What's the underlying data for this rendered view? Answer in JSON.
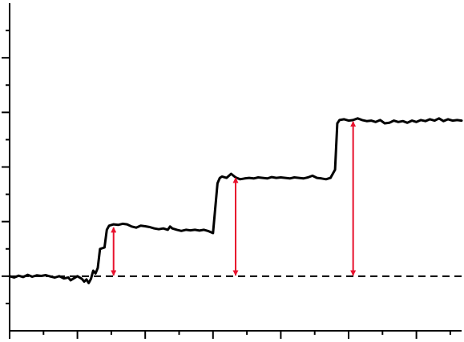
{
  "chart_data": {
    "type": "line",
    "title": "",
    "xlabel": "",
    "ylabel": "",
    "grid": false,
    "legend": "none",
    "xlim": [
      0,
      100
    ],
    "ylim": [
      -2,
      10
    ],
    "x_major_ticks": [
      0,
      15,
      30,
      45,
      60,
      75,
      90
    ],
    "x_minor_ticks": [
      7.5,
      22.5,
      37.5,
      52.5,
      67.5,
      82.5,
      97.5
    ],
    "y_major_ticks": [
      0,
      2,
      4,
      6,
      8
    ],
    "y_minor_ticks": [
      -1,
      1,
      3,
      5,
      7,
      9
    ],
    "baseline": {
      "y": 0,
      "style": "dashed",
      "color": "#000000"
    },
    "series": [
      {
        "color": "#000000",
        "points": [
          [
            0,
            0.0
          ],
          [
            1,
            -0.05
          ],
          [
            2,
            0.02
          ],
          [
            3,
            -0.03
          ],
          [
            4,
            0.05
          ],
          [
            5,
            -0.02
          ],
          [
            6,
            0.03
          ],
          [
            7,
            0.01
          ],
          [
            8,
            0.04
          ],
          [
            9,
            -0.01
          ],
          [
            10,
            -0.05
          ],
          [
            11,
            0.0
          ],
          [
            12,
            -0.08
          ],
          [
            13,
            -0.05
          ],
          [
            13.5,
            -0.15
          ],
          [
            14,
            -0.1
          ],
          [
            15,
            0.0
          ],
          [
            16,
            -0.1
          ],
          [
            16.5,
            -0.2
          ],
          [
            17,
            -0.12
          ],
          [
            17.5,
            -0.25
          ],
          [
            18,
            -0.1
          ],
          [
            18.5,
            0.2
          ],
          [
            19,
            0.1
          ],
          [
            19.5,
            0.3
          ],
          [
            20,
            1.0
          ],
          [
            21,
            1.05
          ],
          [
            21.5,
            1.7
          ],
          [
            22,
            1.85
          ],
          [
            23,
            1.9
          ],
          [
            24,
            1.88
          ],
          [
            25,
            1.92
          ],
          [
            26,
            1.9
          ],
          [
            27,
            1.82
          ],
          [
            28,
            1.78
          ],
          [
            29,
            1.85
          ],
          [
            30,
            1.83
          ],
          [
            31,
            1.8
          ],
          [
            32,
            1.75
          ],
          [
            33,
            1.72
          ],
          [
            34,
            1.75
          ],
          [
            35,
            1.7
          ],
          [
            35.5,
            1.82
          ],
          [
            36,
            1.75
          ],
          [
            37,
            1.7
          ],
          [
            38,
            1.66
          ],
          [
            39,
            1.7
          ],
          [
            40,
            1.68
          ],
          [
            41,
            1.7
          ],
          [
            42,
            1.67
          ],
          [
            43,
            1.7
          ],
          [
            44,
            1.65
          ],
          [
            45,
            1.58
          ],
          [
            46,
            3.4
          ],
          [
            46.5,
            3.6
          ],
          [
            47,
            3.65
          ],
          [
            48,
            3.6
          ],
          [
            49,
            3.75
          ],
          [
            50,
            3.62
          ],
          [
            51,
            3.55
          ],
          [
            52,
            3.58
          ],
          [
            53,
            3.6
          ],
          [
            54,
            3.58
          ],
          [
            55,
            3.62
          ],
          [
            56,
            3.6
          ],
          [
            57,
            3.58
          ],
          [
            58,
            3.63
          ],
          [
            59,
            3.6
          ],
          [
            60,
            3.62
          ],
          [
            61,
            3.6
          ],
          [
            62,
            3.58
          ],
          [
            63,
            3.62
          ],
          [
            64,
            3.6
          ],
          [
            65,
            3.58
          ],
          [
            66,
            3.62
          ],
          [
            67,
            3.68
          ],
          [
            68,
            3.6
          ],
          [
            69,
            3.58
          ],
          [
            70,
            3.55
          ],
          [
            71,
            3.6
          ],
          [
            72,
            3.9
          ],
          [
            72.5,
            5.6
          ],
          [
            73,
            5.72
          ],
          [
            74,
            5.75
          ],
          [
            75,
            5.7
          ],
          [
            76,
            5.72
          ],
          [
            77,
            5.78
          ],
          [
            78,
            5.72
          ],
          [
            79,
            5.68
          ],
          [
            80,
            5.7
          ],
          [
            81,
            5.65
          ],
          [
            82,
            5.72
          ],
          [
            83,
            5.6
          ],
          [
            84,
            5.62
          ],
          [
            85,
            5.7
          ],
          [
            86,
            5.65
          ],
          [
            87,
            5.68
          ],
          [
            88,
            5.62
          ],
          [
            89,
            5.7
          ],
          [
            90,
            5.65
          ],
          [
            91,
            5.72
          ],
          [
            92,
            5.68
          ],
          [
            93,
            5.75
          ],
          [
            94,
            5.7
          ],
          [
            95,
            5.78
          ],
          [
            96,
            5.68
          ],
          [
            97,
            5.75
          ],
          [
            98,
            5.7
          ],
          [
            99,
            5.72
          ],
          [
            100,
            5.7
          ]
        ]
      }
    ],
    "annotations": [
      {
        "type": "double-arrow",
        "x": 23,
        "y_from": 0,
        "y_to": 1.9,
        "color": "#e8112d"
      },
      {
        "type": "double-arrow",
        "x": 50,
        "y_from": 0,
        "y_to": 3.72,
        "color": "#e8112d"
      },
      {
        "type": "double-arrow",
        "x": 76,
        "y_from": 0,
        "y_to": 5.78,
        "color": "#e8112d"
      }
    ]
  }
}
